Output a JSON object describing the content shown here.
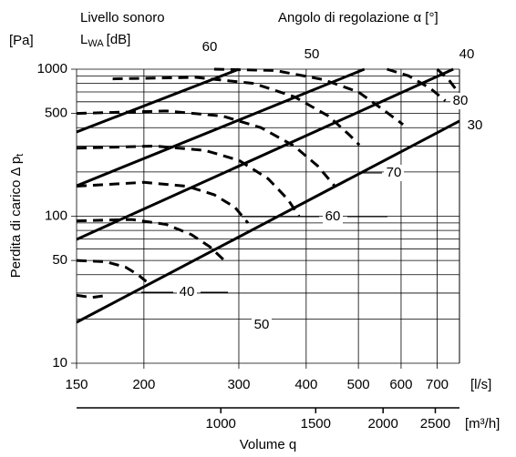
{
  "chart_data": {
    "type": "line",
    "y_unit": "[Pa]",
    "sound_title": "Livello sonoro",
    "sound_symbol": {
      "main": "L",
      "sub": "WA",
      "unit": "[dB]"
    },
    "angle_title": "Angolo di regolazione  α [°]",
    "y_label": {
      "main": "Perdita di carico  Δ p",
      "sub": "t"
    },
    "x_label": "Volume q",
    "x_unit": "[l/s]",
    "x2_unit": "[m³/h]",
    "log_x": true,
    "log_y": true,
    "xlim": [
      150,
      770
    ],
    "ylim": [
      10,
      1000
    ],
    "x2lim": [
      540,
      2772
    ],
    "xticks": [
      150,
      200,
      300,
      400,
      500,
      600,
      700
    ],
    "x2ticks": [
      1000,
      1500,
      2000,
      2500
    ],
    "yticks": [
      10,
      50,
      100,
      500,
      1000
    ],
    "ygrid": [
      20,
      30,
      40,
      60,
      70,
      80,
      90,
      200,
      300,
      400,
      600,
      700,
      800,
      900
    ],
    "grid": true,
    "color": "#000000",
    "angle_series": [
      {
        "name": "60",
        "x": [
          150,
          300
        ],
        "values": [
          374,
          1000
        ]
      },
      {
        "name": "50",
        "x": [
          150,
          513
        ],
        "values": [
          161,
          1000
        ]
      },
      {
        "name": "40",
        "x": [
          150,
          750
        ],
        "values": [
          69.5,
          1000
        ]
      },
      {
        "name": "30",
        "x": [
          150,
          770
        ],
        "values": [
          19,
          444
        ]
      }
    ],
    "sound_labels": [
      "40",
      "50",
      "60",
      "70",
      "80"
    ],
    "sound_curves": [
      {
        "x": [
          150,
          160,
          172
        ],
        "values": [
          29,
          28,
          29
        ]
      },
      {
        "x": [
          150,
          170,
          185,
          195,
          202
        ],
        "values": [
          50,
          49,
          45,
          40,
          36
        ]
      },
      {
        "x": [
          150,
          190,
          220,
          245,
          265,
          282
        ],
        "values": [
          93,
          95,
          88,
          75,
          62,
          50
        ]
      },
      {
        "x": [
          150,
          200,
          240,
          270,
          295,
          312
        ],
        "values": [
          160,
          170,
          160,
          140,
          115,
          90
        ]
      },
      {
        "x": [
          150,
          210,
          260,
          300,
          340,
          370,
          388
        ],
        "values": [
          290,
          300,
          280,
          240,
          180,
          130,
          100
        ]
      },
      {
        "x": [
          150,
          220,
          280,
          330,
          380,
          420,
          452
        ],
        "values": [
          500,
          520,
          480,
          400,
          300,
          220,
          160
        ]
      },
      {
        "x": [
          175,
          250,
          320,
          380,
          440,
          480,
          502
        ],
        "values": [
          860,
          880,
          800,
          650,
          480,
          360,
          305
        ]
      },
      {
        "x": [
          270,
          350,
          430,
          500,
          560,
          605
        ],
        "values": [
          1000,
          980,
          850,
          700,
          520,
          420
        ]
      },
      {
        "x": [
          565,
          620,
          680,
          725
        ],
        "values": [
          1000,
          900,
          740,
          610
        ]
      },
      {
        "x": [
          700,
          735,
          765
        ],
        "values": [
          1000,
          850,
          700
        ]
      }
    ]
  }
}
